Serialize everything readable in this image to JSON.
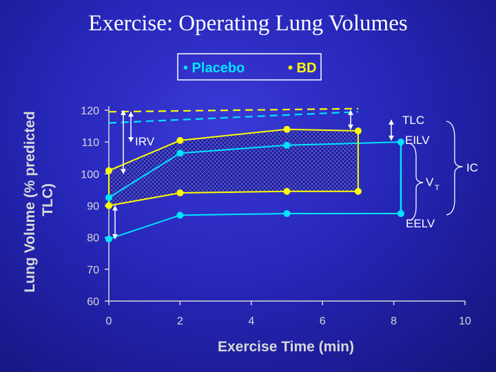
{
  "title": "Exercise:  Operating Lung Volumes",
  "legend": {
    "items": [
      {
        "label": "• Placebo",
        "color": "#00e5ff"
      },
      {
        "label": "• BD",
        "color": "#ffff00"
      }
    ]
  },
  "chart_data": {
    "type": "line",
    "xlabel": "Exercise Time (min)",
    "ylabel": "Lung Volume (% predicted TLC)",
    "xlim": [
      0,
      10
    ],
    "ylim": [
      60,
      120
    ],
    "xticks": [
      "0",
      "2",
      "4",
      "6",
      "8",
      "10"
    ],
    "yticks": [
      "60",
      "70",
      "80",
      "90",
      "100",
      "110",
      "120"
    ],
    "grid": false,
    "series": [
      {
        "name": "BD",
        "role": "EILV",
        "color": "#ffff00",
        "x": [
          0,
          2,
          5,
          7
        ],
        "y": [
          101,
          110.5,
          114,
          113.5
        ]
      },
      {
        "name": "BD",
        "role": "EELV",
        "color": "#ffff00",
        "x": [
          0,
          2,
          5,
          7
        ],
        "y": [
          90,
          94,
          94.5,
          94.5
        ]
      },
      {
        "name": "Placebo",
        "role": "EILV",
        "color": "#00e5ff",
        "x": [
          0,
          2,
          5,
          8.2
        ],
        "y": [
          92.5,
          106.5,
          109,
          110
        ]
      },
      {
        "name": "Placebo",
        "role": "EELV",
        "color": "#00e5ff",
        "x": [
          0,
          2,
          5,
          8.2
        ],
        "y": [
          79.5,
          87,
          87.5,
          87.5
        ]
      },
      {
        "name": "Placebo",
        "role": "TLC",
        "style": "dashed",
        "color": "#00e5ff",
        "x": [
          0,
          7
        ],
        "y": [
          116,
          119.5
        ]
      },
      {
        "name": "BD",
        "role": "TLC",
        "style": "dashed",
        "color": "#ffff00",
        "x": [
          0,
          7
        ],
        "y": [
          119.5,
          120.5
        ]
      }
    ],
    "annotations": {
      "irv": "IRV",
      "tlc": "TLC",
      "eilv": "EILV",
      "vt": "V",
      "vt_sub": "T",
      "eelv": "EELV",
      "ic": "IC"
    },
    "annotation_color": "#ffffff"
  }
}
